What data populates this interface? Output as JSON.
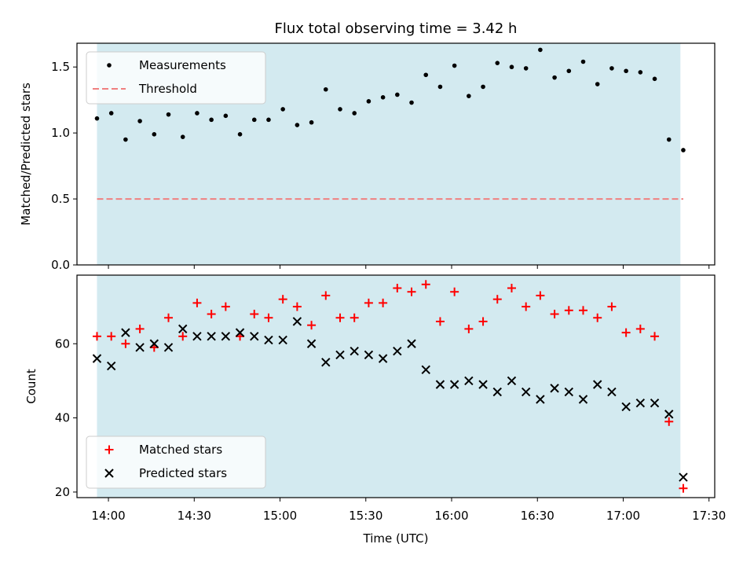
{
  "chart_data": [
    {
      "type": "scatter",
      "title": "Flux total observing time = 3.42 h",
      "xlabel": "",
      "ylabel": "Matched/Predicted stars",
      "xlim": [
        "13:49",
        "17:32"
      ],
      "ylim": [
        0,
        1.68
      ],
      "yticks": [
        0.0,
        0.5,
        1.0,
        1.5
      ],
      "ytick_labels": [
        "0.0",
        "0.5",
        "1.0",
        "1.5"
      ],
      "grid": false,
      "legend_position": "upper-left",
      "shaded_interval": {
        "start": "13:56",
        "end": "17:20",
        "color": "#d3eaf0"
      },
      "series": [
        {
          "name": "Measurements",
          "marker": "dot",
          "color": "#000000",
          "x": [
            "13:56",
            "14:01",
            "14:06",
            "14:11",
            "14:16",
            "14:21",
            "14:26",
            "14:31",
            "14:36",
            "14:41",
            "14:46",
            "14:51",
            "14:56",
            "15:01",
            "15:06",
            "15:11",
            "15:16",
            "15:21",
            "15:26",
            "15:31",
            "15:36",
            "15:41",
            "15:46",
            "15:51",
            "15:56",
            "16:01",
            "16:06",
            "16:11",
            "16:16",
            "16:21",
            "16:26",
            "16:31",
            "16:36",
            "16:41",
            "16:46",
            "16:51",
            "16:56",
            "17:01",
            "17:06",
            "17:11",
            "17:16",
            "17:21"
          ],
          "y": [
            1.11,
            1.15,
            0.95,
            1.09,
            0.99,
            1.14,
            0.97,
            1.15,
            1.1,
            1.13,
            0.99,
            1.1,
            1.1,
            1.18,
            1.06,
            1.08,
            1.33,
            1.18,
            1.15,
            1.24,
            1.27,
            1.29,
            1.23,
            1.44,
            1.35,
            1.51,
            1.28,
            1.35,
            1.53,
            1.5,
            1.49,
            1.63,
            1.42,
            1.47,
            1.54,
            1.37,
            1.49,
            1.47,
            1.46,
            1.41,
            0.95,
            0.87
          ]
        },
        {
          "name": "Threshold",
          "marker": "dashed-line",
          "color": "#f08080",
          "x": [
            "13:56",
            "17:21"
          ],
          "y": [
            0.5,
            0.5
          ]
        }
      ]
    },
    {
      "type": "scatter",
      "title": "",
      "xlabel": "Time (UTC)",
      "ylabel": "Count",
      "xlim": [
        "13:49",
        "17:32"
      ],
      "ylim": [
        18.5,
        78.5
      ],
      "yticks": [
        20,
        40,
        60
      ],
      "ytick_labels": [
        "20",
        "40",
        "60"
      ],
      "xticks": [
        "14:00",
        "14:30",
        "15:00",
        "15:30",
        "16:00",
        "16:30",
        "17:00",
        "17:30"
      ],
      "xtick_labels": [
        "14:00",
        "14:30",
        "15:00",
        "15:30",
        "16:00",
        "16:30",
        "17:00",
        "17:30"
      ],
      "grid": false,
      "legend_position": "lower-left",
      "shaded_interval": {
        "start": "13:56",
        "end": "17:20",
        "color": "#d3eaf0"
      },
      "series": [
        {
          "name": "Matched stars",
          "marker": "plus",
          "color": "#ff0000",
          "x": [
            "13:56",
            "14:01",
            "14:06",
            "14:11",
            "14:16",
            "14:21",
            "14:26",
            "14:31",
            "14:36",
            "14:41",
            "14:46",
            "14:51",
            "14:56",
            "15:01",
            "15:06",
            "15:11",
            "15:16",
            "15:21",
            "15:26",
            "15:31",
            "15:36",
            "15:41",
            "15:46",
            "15:51",
            "15:56",
            "16:01",
            "16:06",
            "16:11",
            "16:16",
            "16:21",
            "16:26",
            "16:31",
            "16:36",
            "16:41",
            "16:46",
            "16:51",
            "16:56",
            "17:01",
            "17:06",
            "17:11",
            "17:16",
            "17:21"
          ],
          "y": [
            62,
            62,
            60,
            64,
            59,
            67,
            62,
            71,
            68,
            70,
            62,
            68,
            67,
            72,
            70,
            65,
            73,
            67,
            67,
            71,
            71,
            75,
            74,
            76,
            66,
            74,
            64,
            66,
            72,
            75,
            70,
            73,
            68,
            69,
            69,
            67,
            70,
            63,
            64,
            62,
            39,
            21
          ]
        },
        {
          "name": "Predicted stars",
          "marker": "x",
          "color": "#000000",
          "x": [
            "13:56",
            "14:01",
            "14:06",
            "14:11",
            "14:16",
            "14:21",
            "14:26",
            "14:31",
            "14:36",
            "14:41",
            "14:46",
            "14:51",
            "14:56",
            "15:01",
            "15:06",
            "15:11",
            "15:16",
            "15:21",
            "15:26",
            "15:31",
            "15:36",
            "15:41",
            "15:46",
            "15:51",
            "15:56",
            "16:01",
            "16:06",
            "16:11",
            "16:16",
            "16:21",
            "16:26",
            "16:31",
            "16:36",
            "16:41",
            "16:46",
            "16:51",
            "16:56",
            "17:01",
            "17:06",
            "17:11",
            "17:16",
            "17:21"
          ],
          "y": [
            56,
            54,
            63,
            59,
            60,
            59,
            64,
            62,
            62,
            62,
            63,
            62,
            61,
            61,
            66,
            60,
            55,
            57,
            58,
            57,
            56,
            58,
            60,
            53,
            49,
            49,
            50,
            49,
            47,
            50,
            47,
            45,
            48,
            47,
            45,
            49,
            47,
            43,
            44,
            44,
            41,
            24
          ]
        }
      ]
    }
  ]
}
